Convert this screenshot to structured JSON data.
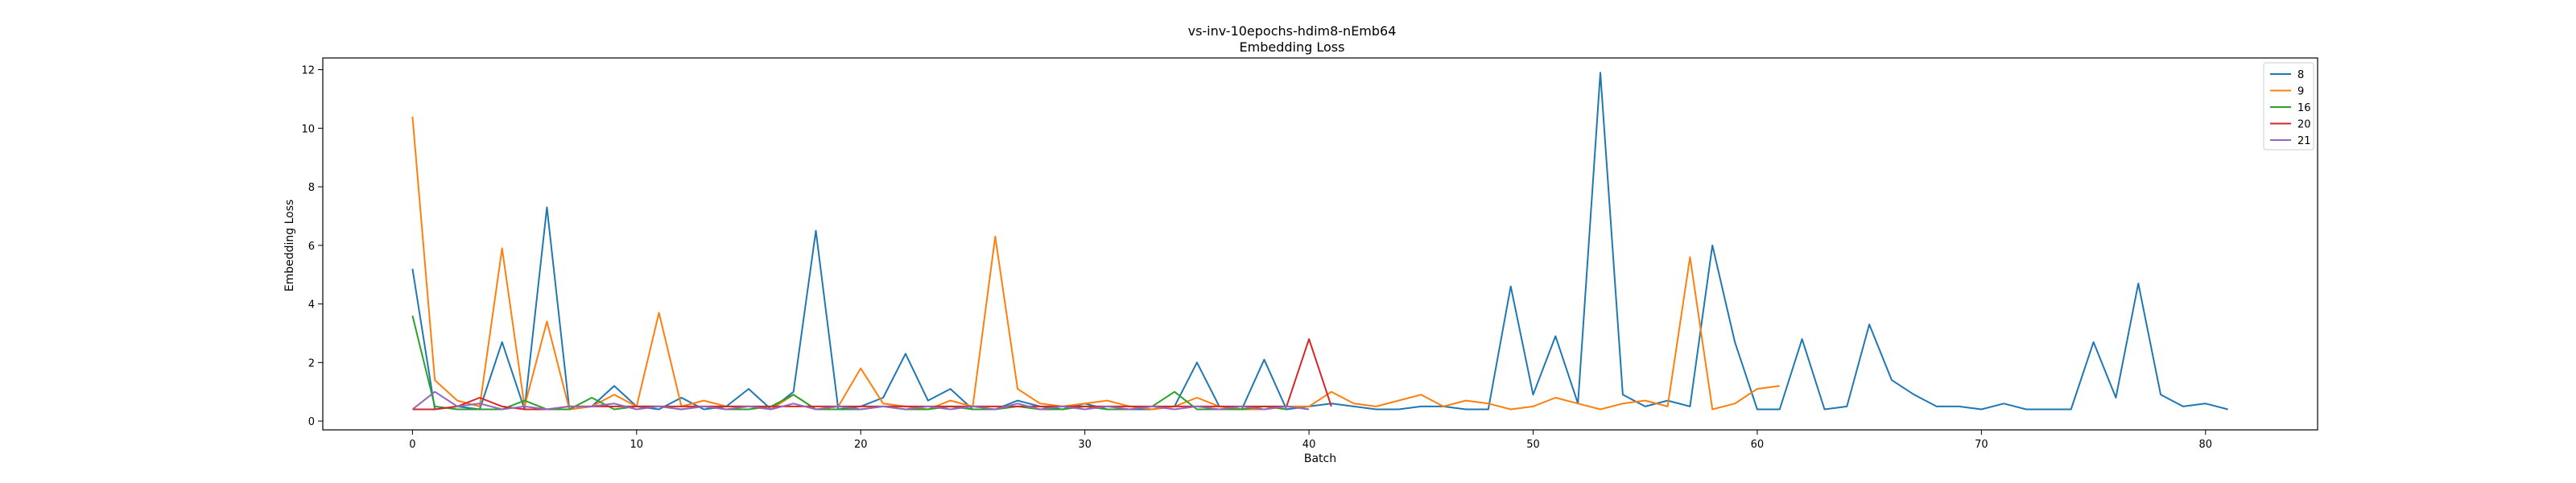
{
  "chart_data": {
    "type": "line",
    "title": "vs-inv-10epochs-hdim8-nEmb64",
    "subtitle": "Embedding Loss",
    "xlabel": "Batch",
    "ylabel": "Embedding Loss",
    "xlim": [
      -4,
      85
    ],
    "ylim": [
      -0.3,
      12.4
    ],
    "xticks": [
      0,
      10,
      20,
      30,
      40,
      50,
      60,
      70,
      80
    ],
    "yticks": [
      0,
      2,
      4,
      6,
      8,
      10,
      12
    ],
    "grid": false,
    "legend_position": "top-right",
    "series": [
      {
        "name": "8",
        "color": "#1f77b4",
        "values": [
          5.2,
          0.4,
          0.5,
          0.4,
          2.7,
          0.4,
          7.3,
          0.4,
          0.5,
          1.2,
          0.5,
          0.4,
          0.8,
          0.4,
          0.5,
          1.1,
          0.4,
          1.0,
          6.5,
          0.4,
          0.5,
          0.8,
          2.3,
          0.7,
          1.1,
          0.4,
          0.4,
          0.7,
          0.5,
          0.4,
          0.6,
          0.4,
          0.4,
          0.4,
          0.5,
          2.0,
          0.5,
          0.4,
          2.1,
          0.4,
          0.5,
          0.6,
          0.5,
          0.4,
          0.4,
          0.5,
          0.5,
          0.4,
          0.4,
          4.6,
          0.9,
          2.9,
          0.6,
          11.9,
          0.9,
          0.5,
          0.7,
          0.5,
          6.0,
          2.7,
          0.4,
          0.4,
          2.8,
          0.4,
          0.5,
          3.3,
          1.4,
          0.9,
          0.5,
          0.5,
          0.4,
          0.6,
          0.4,
          0.4,
          0.4,
          2.7,
          0.8,
          4.7,
          0.9,
          0.5,
          0.6,
          0.4
        ]
      },
      {
        "name": "9",
        "color": "#ff7f0e",
        "values": [
          10.4,
          1.4,
          0.7,
          0.5,
          5.9,
          0.5,
          3.4,
          0.4,
          0.5,
          0.9,
          0.5,
          3.7,
          0.5,
          0.7,
          0.5,
          0.5,
          0.4,
          0.9,
          0.4,
          0.5,
          1.8,
          0.6,
          0.5,
          0.4,
          0.7,
          0.5,
          6.3,
          1.1,
          0.6,
          0.5,
          0.6,
          0.7,
          0.5,
          0.4,
          0.5,
          0.8,
          0.5,
          0.4,
          0.4,
          0.5,
          0.5,
          1.0,
          0.6,
          0.5,
          0.7,
          0.9,
          0.5,
          0.7,
          0.6,
          0.4,
          0.5,
          0.8,
          0.6,
          0.4,
          0.6,
          0.7,
          0.5,
          5.6,
          0.4,
          0.6,
          1.1,
          1.2
        ]
      },
      {
        "name": "16",
        "color": "#2ca02c",
        "values": [
          3.6,
          0.5,
          0.4,
          0.4,
          0.4,
          0.7,
          0.4,
          0.4,
          0.8,
          0.4,
          0.5,
          0.5,
          0.4,
          0.5,
          0.4,
          0.4,
          0.5,
          0.9,
          0.4,
          0.4,
          0.4,
          0.5,
          0.4,
          0.4,
          0.5,
          0.4,
          0.4,
          0.5,
          0.4,
          0.4,
          0.5,
          0.4,
          0.4,
          0.5,
          1.0,
          0.4,
          0.4,
          0.4,
          0.5,
          0.4
        ]
      },
      {
        "name": "20",
        "color": "#d62728",
        "values": [
          0.4,
          0.4,
          0.5,
          0.8,
          0.5,
          0.4,
          0.4,
          0.5,
          0.5,
          0.5,
          0.5,
          0.5,
          0.5,
          0.5,
          0.5,
          0.5,
          0.5,
          0.5,
          0.5,
          0.5,
          0.5,
          0.5,
          0.5,
          0.5,
          0.5,
          0.5,
          0.5,
          0.5,
          0.5,
          0.5,
          0.5,
          0.5,
          0.5,
          0.5,
          0.5,
          0.5,
          0.5,
          0.5,
          0.5,
          0.5,
          2.8,
          0.5
        ]
      },
      {
        "name": "21",
        "color": "#9467bd",
        "values": [
          0.4,
          1.0,
          0.5,
          0.6,
          0.4,
          0.5,
          0.4,
          0.5,
          0.5,
          0.6,
          0.4,
          0.5,
          0.4,
          0.5,
          0.4,
          0.5,
          0.4,
          0.6,
          0.4,
          0.5,
          0.4,
          0.5,
          0.4,
          0.5,
          0.4,
          0.5,
          0.4,
          0.6,
          0.4,
          0.5,
          0.4,
          0.5,
          0.4,
          0.5,
          0.4,
          0.5,
          0.4,
          0.5,
          0.4,
          0.5,
          0.4
        ]
      }
    ]
  }
}
